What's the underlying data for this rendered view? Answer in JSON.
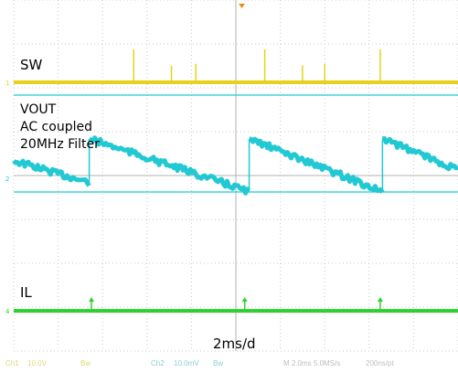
{
  "chart_data": {
    "type": "line",
    "title": "",
    "xlabel": "2ms/d",
    "time_per_div_ms": 2,
    "grid": true,
    "divisions": {
      "x": 10,
      "y": 8
    },
    "x_range_ms": [
      -10,
      10
    ],
    "series": [
      {
        "name": "SW",
        "color": "#e6d21a",
        "ground_marker": "1",
        "pulses_ms": [
          {
            "t": -4.6,
            "h": 0.75
          },
          {
            "t": -2.9,
            "h": 0.38
          },
          {
            "t": -1.8,
            "h": 0.42
          },
          {
            "t": 1.3,
            "h": 0.75
          },
          {
            "t": 3.0,
            "h": 0.38
          },
          {
            "t": 4.0,
            "h": 0.42
          },
          {
            "t": 6.5,
            "h": 0.75
          }
        ]
      },
      {
        "name": "VOUT",
        "color": "#22c9d3",
        "ground_marker": "2",
        "annotation": [
          "VOUT",
          "AC coupled",
          "20MHz Filter"
        ],
        "ramp_segments_ms": [
          {
            "t0": -10.0,
            "t1": -6.6,
            "v0": 0.4,
            "v1": -0.1
          },
          {
            "t0": -6.6,
            "t1": 0.6,
            "v0": 0.9,
            "v1": -0.3
          },
          {
            "t0": 0.6,
            "t1": 6.6,
            "v0": 0.9,
            "v1": -0.3
          },
          {
            "t0": 6.6,
            "t1": 10.0,
            "v0": 0.9,
            "v1": 0.2
          }
        ]
      },
      {
        "name": "IL",
        "color": "#2ed12e",
        "ground_marker": "4",
        "spikes_ms": [
          -6.5,
          0.4,
          6.5
        ]
      }
    ],
    "channel_readouts": [
      "Ch1",
      "10.0V",
      "Bw",
      "Ch2",
      "10.0mV",
      "Bw",
      "M 2.0ms 5.0MS/s",
      "200ns/pt"
    ]
  },
  "colors": {
    "grid": "#c8c8c8",
    "sw": "#e6d21a",
    "vout": "#22c9d3",
    "il": "#2ed12e",
    "trigger": "#e88a1e"
  }
}
